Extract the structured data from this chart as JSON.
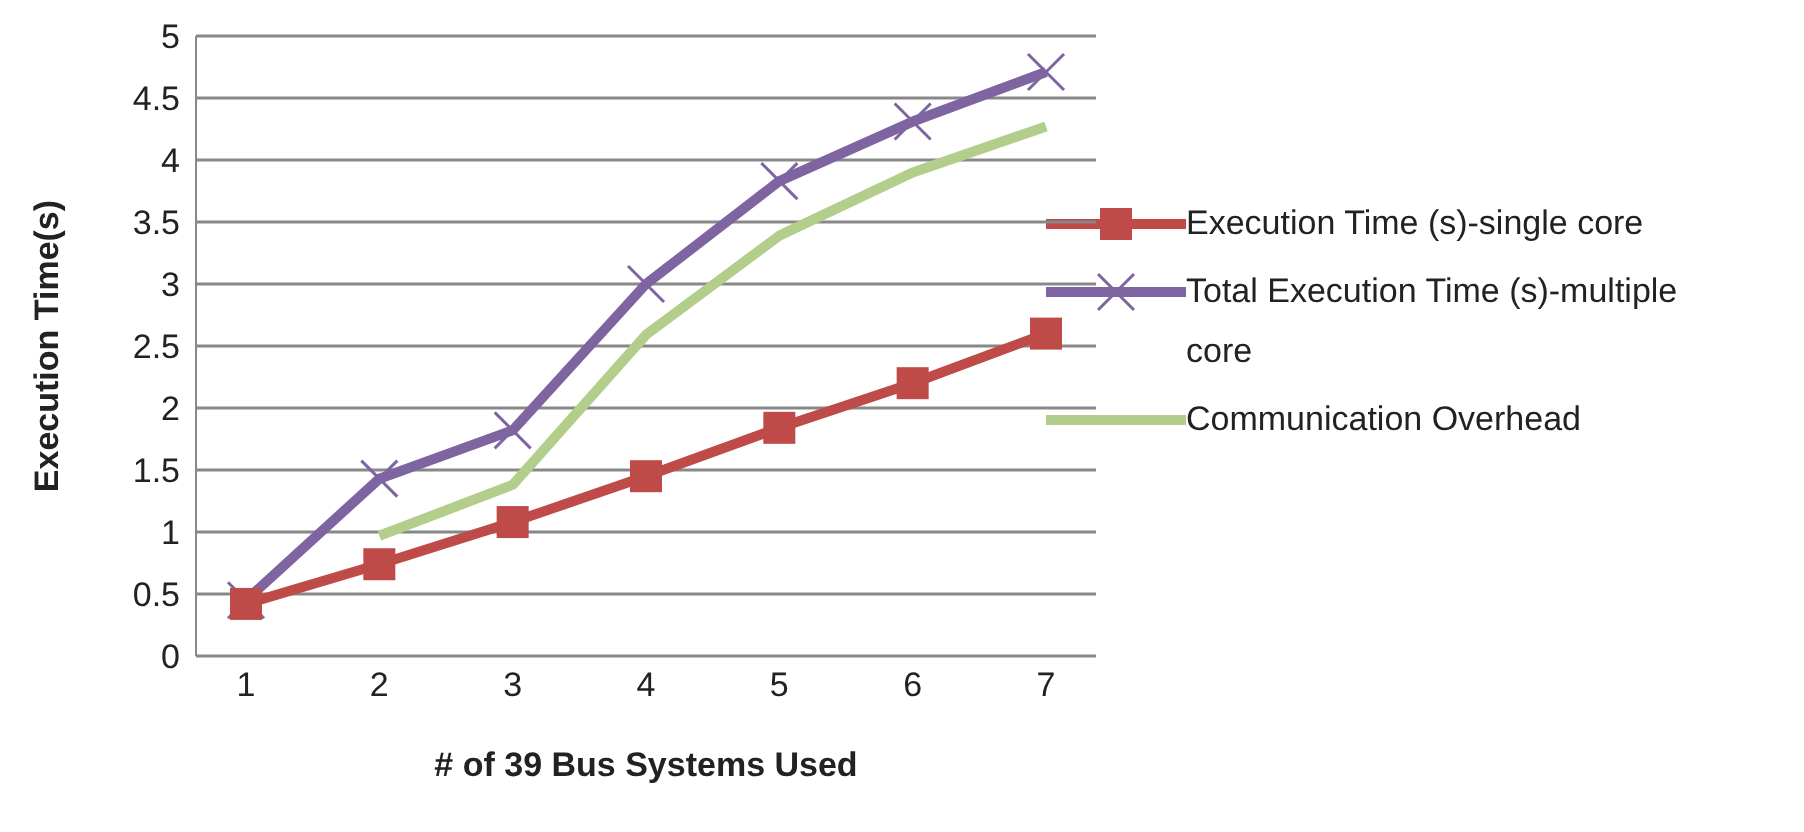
{
  "chart_data": {
    "type": "line",
    "xlabel": "# of 39 Bus Systems Used",
    "ylabel": "Execution Time(s)",
    "categories": [
      "1",
      "2",
      "3",
      "4",
      "5",
      "6",
      "7"
    ],
    "ylim": [
      0,
      5
    ],
    "yticks": [
      0,
      0.5,
      1,
      1.5,
      2,
      2.5,
      3,
      3.5,
      4,
      4.5,
      5
    ],
    "grid": "y",
    "legend": "right",
    "series": [
      {
        "name": "Execution Time (s)-single core",
        "color": "#be4b48",
        "marker": "square",
        "values": [
          0.42,
          0.74,
          1.08,
          1.45,
          1.84,
          2.2,
          2.6
        ]
      },
      {
        "name": "Total Execution Time (s)-multiple core",
        "color": "#7e64a1",
        "marker": "cross",
        "values": [
          0.45,
          1.43,
          1.82,
          3.0,
          3.83,
          4.31,
          4.71
        ]
      },
      {
        "name": "Communication Overhead",
        "color": "#b3cd8b",
        "marker": "none",
        "values": [
          null,
          0.97,
          1.38,
          2.59,
          3.39,
          3.9,
          4.27
        ]
      }
    ]
  }
}
